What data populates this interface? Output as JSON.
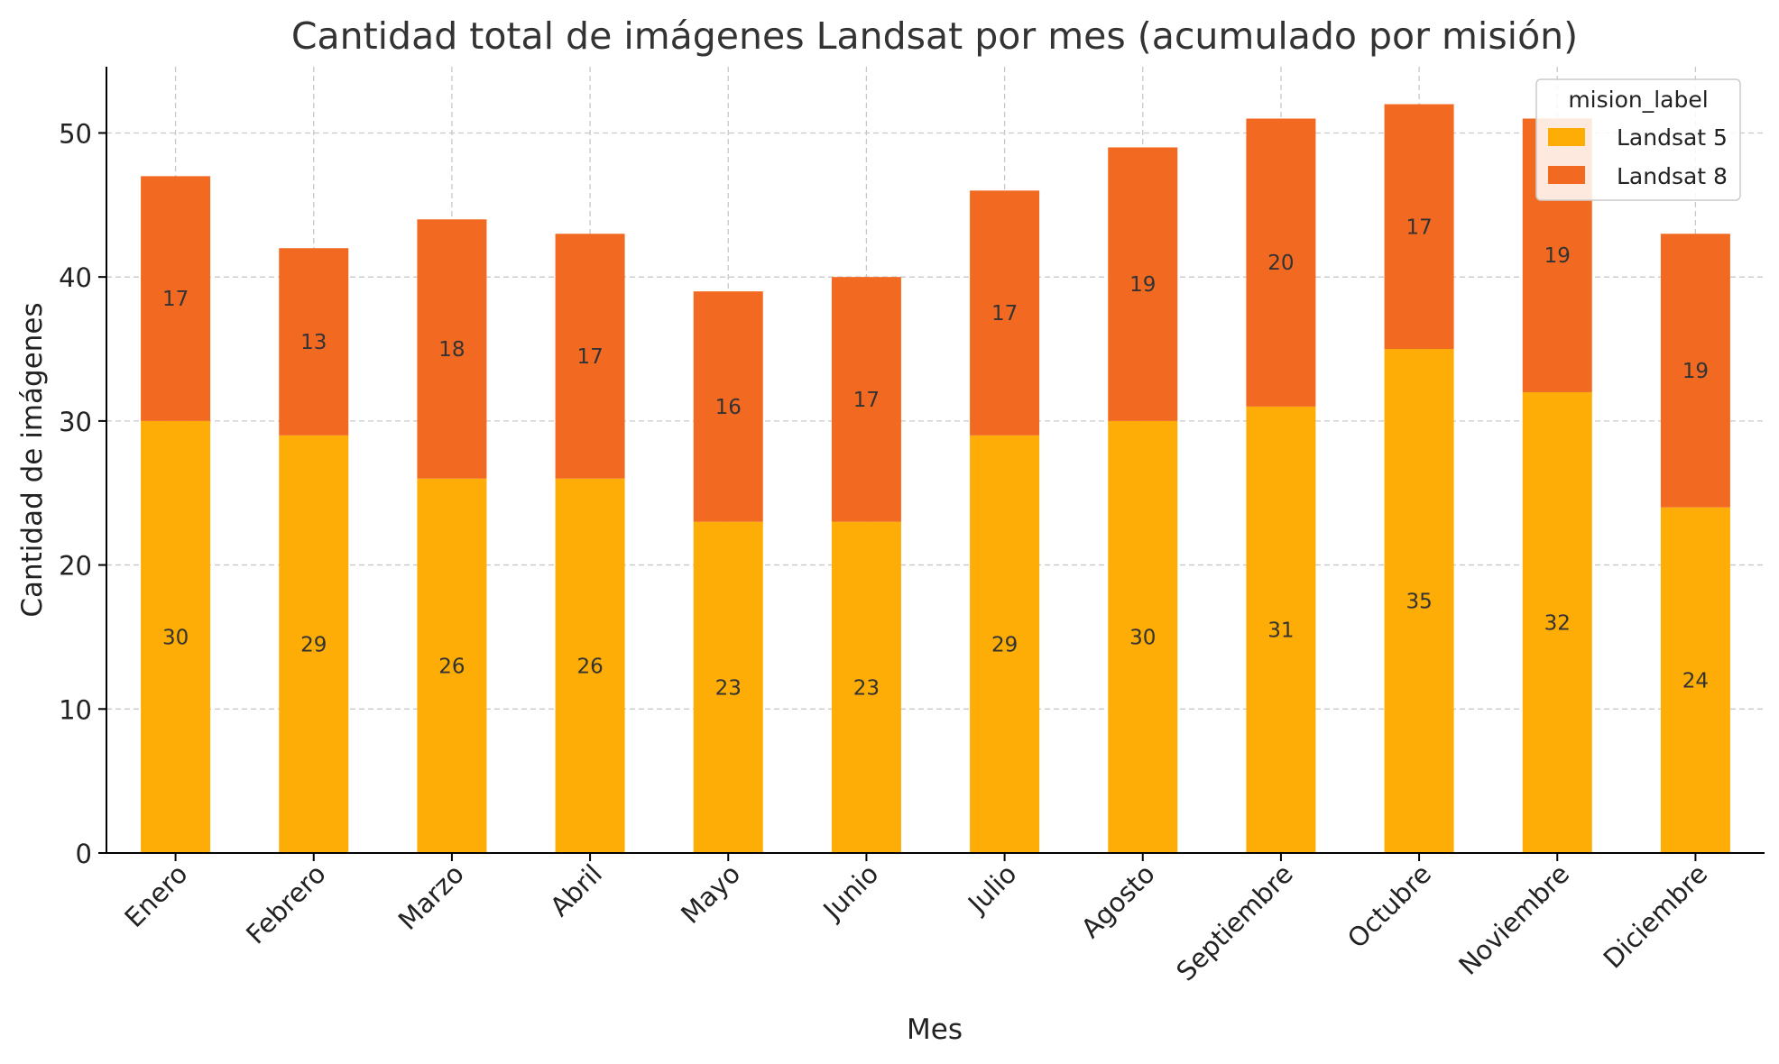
{
  "chart_data": {
    "type": "bar",
    "stacked": true,
    "title": "Cantidad total de imágenes Landsat por mes (acumulado por misión)",
    "xlabel": "Mes",
    "ylabel": "Cantidad de imágenes",
    "categories": [
      "Enero",
      "Febrero",
      "Marzo",
      "Abril",
      "Mayo",
      "Junio",
      "Julio",
      "Agosto",
      "Septiembre",
      "Octubre",
      "Noviembre",
      "Diciembre"
    ],
    "series": [
      {
        "name": "Landsat 5",
        "color": "#fdad05",
        "values": [
          30,
          29,
          26,
          26,
          23,
          23,
          29,
          30,
          31,
          35,
          32,
          24
        ]
      },
      {
        "name": "Landsat 8",
        "color": "#f26a22",
        "values": [
          17,
          13,
          18,
          17,
          16,
          17,
          17,
          19,
          20,
          17,
          19,
          19
        ]
      }
    ],
    "ylim": [
      0,
      54.6
    ],
    "yticks": [
      0,
      10,
      20,
      30,
      40,
      50
    ],
    "grid": true,
    "legend": {
      "title": "mision_label",
      "position": "top-right"
    },
    "data_labels": true
  }
}
